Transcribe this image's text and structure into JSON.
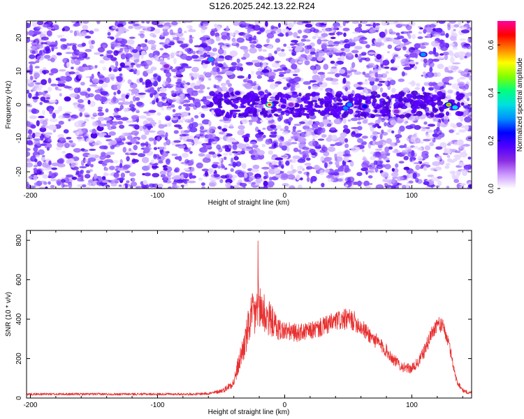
{
  "title": "S126.2025.242.13.22.R24",
  "colors": {
    "snr_line": "#e83030",
    "spectrogram_ridge": "#5a00ff",
    "colorbar": [
      "#ffffff",
      "#cc99ff",
      "#8a2be2",
      "#5000ff",
      "#0000ff",
      "#0090ff",
      "#00e0e0",
      "#00ff80",
      "#80ff00",
      "#ffff00",
      "#ff8000",
      "#ff0000",
      "#ff00a0"
    ]
  },
  "chart_data": [
    {
      "type": "heatmap",
      "xlabel": "Height of straight line (km)",
      "ylabel": "Frequency (Hz)",
      "xlim": [
        -203,
        147
      ],
      "ylim": [
        -25,
        25
      ],
      "xticks": [
        -200,
        -100,
        0,
        100
      ],
      "xtick_labels": [
        "-200",
        "-100",
        "0",
        "100"
      ],
      "yticks": [
        -20,
        -10,
        0,
        10,
        20
      ],
      "ytick_labels": [
        "-20",
        "-10",
        "0",
        "10",
        "20"
      ],
      "colorbar": {
        "label": "Normalized spectral amplitude",
        "range": [
          0,
          0.7
        ],
        "ticks": [
          0,
          0.2,
          0.4,
          0.6
        ],
        "tick_labels": [
          "0.0",
          "0.2",
          "0.4",
          "0.6"
        ]
      },
      "ridge": {
        "x_start": -55,
        "x_end": 140,
        "frequency": 0
      },
      "hotspots": [
        {
          "x": -58,
          "y": 13.5,
          "value": 0.28
        },
        {
          "x": -93,
          "y": 11.5,
          "value": 0.12
        },
        {
          "x": -37,
          "y": 3.5,
          "value": 0.15
        },
        {
          "x": -12,
          "y": 0,
          "value": 0.55
        },
        {
          "x": -1,
          "y": -0.5,
          "value": 0.15
        },
        {
          "x": 5,
          "y": 0,
          "value": 0.12
        },
        {
          "x": 48,
          "y": -1,
          "value": 0.3
        },
        {
          "x": 51,
          "y": 0,
          "value": 0.3
        },
        {
          "x": 63,
          "y": -0.5,
          "value": 0.22
        },
        {
          "x": 88,
          "y": -2,
          "value": 0.12
        },
        {
          "x": 109,
          "y": 15,
          "value": 0.3
        },
        {
          "x": 129,
          "y": 0,
          "value": 0.45
        },
        {
          "x": 134,
          "y": -0.8,
          "value": 0.35
        }
      ]
    },
    {
      "type": "line",
      "xlabel": "Height of straight line (km)",
      "ylabel": "SNR (10 * v/v)",
      "xlim": [
        -203,
        147
      ],
      "ylim": [
        0,
        850
      ],
      "xticks": [
        -200,
        -100,
        0,
        100
      ],
      "xtick_labels": [
        "-200",
        "-100",
        "0",
        "100"
      ],
      "yticks": [
        0,
        200,
        400,
        600,
        800
      ],
      "ytick_labels": [
        "0",
        "200",
        "400",
        "600",
        "800"
      ],
      "series": [
        {
          "x": [
            -203,
            -150,
            -100,
            -70,
            -57,
            -48,
            -40,
            -35,
            -30,
            -27,
            -24,
            -21,
            -18,
            -15,
            -10,
            -5,
            0,
            10,
            20,
            30,
            40,
            50,
            55,
            60,
            70,
            80,
            85,
            90,
            95,
            100,
            105,
            110,
            115,
            120,
            125,
            130,
            135,
            140,
            145,
            147
          ],
          "values": [
            20,
            20,
            20,
            20,
            25,
            40,
            80,
            200,
            310,
            400,
            420,
            460,
            450,
            420,
            390,
            350,
            340,
            330,
            340,
            360,
            390,
            400,
            390,
            360,
            300,
            240,
            200,
            170,
            150,
            150,
            180,
            240,
            320,
            380,
            360,
            250,
            90,
            40,
            25,
            30
          ],
          "noise_amplitude": [
            6,
            6,
            6,
            6,
            8,
            12,
            25,
            60,
            90,
            110,
            130,
            160,
            140,
            110,
            80,
            60,
            50,
            45,
            45,
            50,
            50,
            55,
            50,
            45,
            40,
            35,
            30,
            28,
            25,
            25,
            28,
            35,
            40,
            40,
            35,
            30,
            20,
            10,
            8,
            8
          ]
        }
      ]
    }
  ]
}
